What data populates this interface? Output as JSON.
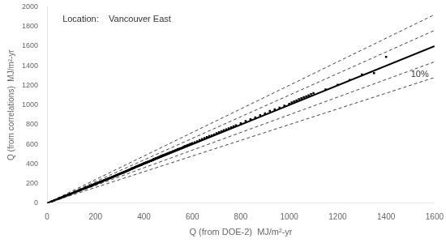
{
  "chart_data": {
    "type": "scatter",
    "xlabel": "Q (from DOE-2)  MJ/m²-yr",
    "ylabel": "Q (from correlations)  MJ/m²-yr",
    "annotations": [
      "Location:    Vancouver East",
      "10%"
    ],
    "xlim": [
      0,
      1600
    ],
    "ylim": [
      0,
      2000
    ],
    "xticks": [
      0,
      200,
      400,
      600,
      800,
      1000,
      1200,
      1400,
      1600
    ],
    "yticks": [
      0,
      200,
      400,
      600,
      800,
      1000,
      1200,
      1400,
      1600,
      1800,
      2000
    ],
    "grid": false,
    "series": [
      {
        "type": "line",
        "line_style": "dashed",
        "color": "#444444",
        "x": [
          0,
          1600
        ],
        "values": [
          0,
          1920
        ]
      },
      {
        "type": "line",
        "line_style": "dashed",
        "color": "#444444",
        "x": [
          0,
          1600
        ],
        "values": [
          0,
          1280
        ]
      },
      {
        "type": "line",
        "line_style": "dashed",
        "color": "#444444",
        "x": [
          0,
          1600
        ],
        "values": [
          0,
          1760
        ]
      },
      {
        "type": "line",
        "line_style": "dashed",
        "color": "#444444",
        "x": [
          0,
          1600
        ],
        "values": [
          0,
          1440
        ]
      },
      {
        "type": "line",
        "line_style": "solid",
        "color": "#000000",
        "x": [
          0,
          1600
        ],
        "values": [
          0,
          1600
        ]
      },
      {
        "type": "scatter",
        "marker": "square",
        "color": "#000000",
        "x": [
          20,
          30,
          40,
          50,
          55,
          60,
          65,
          70,
          75,
          80,
          85,
          90,
          95,
          100,
          105,
          110,
          115,
          120,
          125,
          130,
          135,
          140,
          145,
          150,
          155,
          158,
          160,
          163,
          165,
          168,
          170,
          172,
          175,
          178,
          180,
          182,
          185,
          188,
          190,
          193,
          195,
          198,
          200,
          202,
          205,
          208,
          210,
          212,
          215,
          218,
          220,
          222,
          225,
          228,
          230,
          232,
          235,
          238,
          240,
          242,
          245,
          248,
          250,
          252,
          255,
          258,
          260,
          262,
          265,
          268,
          270,
          272,
          275,
          278,
          280,
          282,
          285,
          288,
          290,
          292,
          295,
          298,
          300,
          302,
          305,
          308,
          310,
          312,
          315,
          318,
          320,
          322,
          325,
          328,
          330,
          332,
          335,
          338,
          340,
          342,
          345,
          348,
          350,
          352,
          355,
          358,
          360,
          362,
          365,
          368,
          370,
          372,
          375,
          378,
          380,
          382,
          385,
          388,
          390,
          392,
          395,
          398,
          400,
          402,
          405,
          408,
          410,
          412,
          415,
          418,
          420,
          422,
          425,
          428,
          430,
          432,
          435,
          438,
          440,
          442,
          445,
          448,
          450,
          452,
          455,
          458,
          460,
          462,
          465,
          468,
          470,
          472,
          475,
          478,
          480,
          485,
          490,
          495,
          500,
          505,
          510,
          515,
          520,
          525,
          530,
          535,
          540,
          545,
          550,
          555,
          560,
          565,
          570,
          575,
          580,
          585,
          590,
          595,
          600,
          610,
          620,
          630,
          640,
          650,
          660,
          670,
          680,
          690,
          700,
          710,
          720,
          730,
          740,
          750,
          760,
          770,
          780,
          800,
          820,
          840,
          860,
          880,
          900,
          920,
          940,
          960,
          980,
          1000,
          1010,
          1020,
          1030,
          1040,
          1050,
          1060,
          1070,
          1080,
          1090,
          1100,
          1150,
          1200,
          1250,
          1300,
          1350,
          1400
        ],
        "values": [
          18,
          28,
          38,
          47,
          52,
          57,
          62,
          67,
          72,
          77,
          82,
          87,
          91,
          96,
          101,
          106,
          111,
          116,
          121,
          126,
          131,
          136,
          141,
          146,
          151,
          154,
          156,
          159,
          161,
          164,
          166,
          168,
          171,
          174,
          176,
          178,
          181,
          184,
          186,
          189,
          191,
          194,
          196,
          198,
          201,
          204,
          206,
          208,
          211,
          214,
          216,
          218,
          221,
          224,
          226,
          228,
          231,
          234,
          236,
          238,
          241,
          244,
          246,
          248,
          251,
          254,
          256,
          258,
          261,
          264,
          266,
          268,
          271,
          274,
          276,
          278,
          281,
          284,
          286,
          290,
          293,
          296,
          298,
          300,
          303,
          306,
          308,
          310,
          313,
          316,
          318,
          320,
          323,
          326,
          328,
          330,
          333,
          336,
          338,
          342,
          345,
          348,
          352,
          354,
          357,
          360,
          362,
          364,
          368,
          371,
          373,
          375,
          378,
          381,
          383,
          385,
          388,
          391,
          393,
          396,
          399,
          402,
          404,
          406,
          409,
          412,
          414,
          416,
          419,
          422,
          424,
          426,
          429,
          432,
          434,
          436,
          440,
          443,
          445,
          448,
          451,
          454,
          456,
          458,
          461,
          465,
          467,
          469,
          472,
          475,
          477,
          480,
          483,
          486,
          488,
          493,
          498,
          503,
          508,
          513,
          518,
          523,
          528,
          533,
          538,
          543,
          548,
          553,
          558,
          562,
          568,
          575,
          580,
          585,
          590,
          595,
          600,
          605,
          610,
          620,
          630,
          642,
          652,
          662,
          672,
          682,
          690,
          700,
          712,
          722,
          732,
          742,
          752,
          762,
          772,
          782,
          792,
          812,
          835,
          855,
          873,
          895,
          915,
          938,
          955,
          972,
          992,
          1010,
          1025,
          1035,
          1045,
          1058,
          1068,
          1078,
          1088,
          1098,
          1110,
          1120,
          1158,
          1205,
          1255,
          1310,
          1325,
          1490
        ]
      }
    ]
  }
}
